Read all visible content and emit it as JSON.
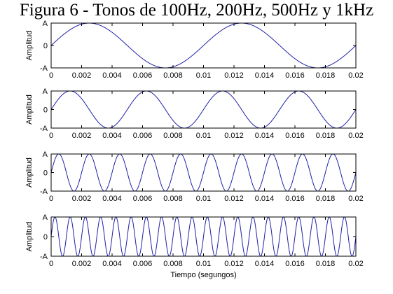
{
  "title": "Figura 6 - Tonos de 100Hz, 200Hz, 500Hz y 1kHz",
  "colors": {
    "line": "#1f1fa8",
    "axes": "#000000",
    "background": "#ffffff"
  },
  "chart_data": [
    {
      "type": "line",
      "frequency_hz": 100,
      "ylabel": "Amplitud",
      "xlabel": "",
      "xlim": [
        0,
        0.02
      ],
      "ylim": [
        -1,
        1
      ],
      "xticks": [
        "0",
        "0.002",
        "0.004",
        "0.006",
        "0.008",
        "0.01",
        "0.012",
        "0.014",
        "0.016",
        "0.018",
        "0.02"
      ],
      "yticks": [
        "-A",
        "0",
        "A"
      ],
      "grid": false
    },
    {
      "type": "line",
      "frequency_hz": 200,
      "ylabel": "Amplitud",
      "xlabel": "",
      "xlim": [
        0,
        0.02
      ],
      "ylim": [
        -1,
        1
      ],
      "xticks": [
        "0",
        "0.002",
        "0.004",
        "0.006",
        "0.008",
        "0.01",
        "0.012",
        "0.014",
        "0.016",
        "0.018",
        "0.02"
      ],
      "yticks": [
        "-A",
        "0",
        "A"
      ],
      "grid": false
    },
    {
      "type": "line",
      "frequency_hz": 500,
      "ylabel": "Amplitud",
      "xlabel": "",
      "xlim": [
        0,
        0.02
      ],
      "ylim": [
        -1,
        1
      ],
      "xticks": [
        "0",
        "0.002",
        "0.004",
        "0.006",
        "0.008",
        "0.01",
        "0.012",
        "0.014",
        "0.016",
        "0.018",
        "0.02"
      ],
      "yticks": [
        "-A",
        "0",
        "A"
      ],
      "grid": false
    },
    {
      "type": "line",
      "frequency_hz": 1000,
      "ylabel": "Amplitud",
      "xlabel": "Tiempo (segungos)",
      "xlim": [
        0,
        0.02
      ],
      "ylim": [
        -1,
        1
      ],
      "xticks": [
        "0",
        "0.002",
        "0.004",
        "0.006",
        "0.008",
        "0.01",
        "0.012",
        "0.014",
        "0.016",
        "0.018",
        "0.02"
      ],
      "yticks": [
        "-A",
        "0",
        "A"
      ],
      "grid": false
    }
  ]
}
